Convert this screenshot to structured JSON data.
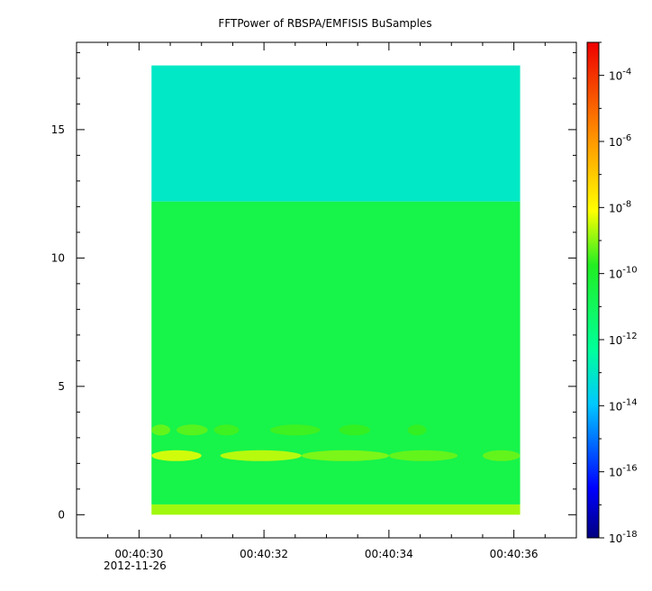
{
  "chart_data": {
    "type": "heatmap",
    "title": "FFTPower of RBSPA/EMFISIS  BuSamples",
    "xlabel": "",
    "ylabel": "",
    "x_ticks": [
      "00:40:30",
      "00:40:32",
      "00:40:34",
      "00:40:36"
    ],
    "x_tick_values_s": [
      30,
      32,
      34,
      36
    ],
    "x_date_label": "2012-11-26",
    "xlim_s": [
      29.0,
      37.0
    ],
    "data_x_range_s": [
      30.2,
      36.1
    ],
    "y_ticks": [
      "0",
      "5",
      "10",
      "15"
    ],
    "y_tick_values": [
      0,
      5,
      10,
      15
    ],
    "ylim": [
      -0.9,
      18.4
    ],
    "data_y_range": [
      0,
      17.5
    ],
    "colorbar": {
      "scale": "log",
      "range": [
        1e-18,
        0.001
      ],
      "tick_exponents": [
        -4,
        -6,
        -8,
        -10,
        -12,
        -14,
        -16,
        -18
      ],
      "tick_base": "10"
    },
    "bands": [
      {
        "y_range": [
          12.2,
          17.5
        ],
        "log10_power": -13.0
      },
      {
        "y_range": [
          0.4,
          12.2
        ],
        "log10_power": -10.6
      },
      {
        "y_range": [
          0.0,
          0.4
        ],
        "log10_power": -8.8
      }
    ],
    "features": [
      {
        "y_center": 2.3,
        "x_range_s": [
          30.2,
          31.0
        ],
        "log10_power": -8.3
      },
      {
        "y_center": 2.3,
        "x_range_s": [
          31.3,
          32.6
        ],
        "log10_power": -8.5
      },
      {
        "y_center": 2.3,
        "x_range_s": [
          32.6,
          34.0
        ],
        "log10_power": -9.0
      },
      {
        "y_center": 2.3,
        "x_range_s": [
          34.0,
          35.1
        ],
        "log10_power": -9.2
      },
      {
        "y_center": 2.3,
        "x_range_s": [
          35.5,
          36.1
        ],
        "log10_power": -9.2
      },
      {
        "y_center": 3.3,
        "x_range_s": [
          30.2,
          30.5
        ],
        "log10_power": -9.2
      },
      {
        "y_center": 3.3,
        "x_range_s": [
          30.6,
          31.1
        ],
        "log10_power": -9.3
      },
      {
        "y_center": 3.3,
        "x_range_s": [
          31.2,
          31.6
        ],
        "log10_power": -9.5
      },
      {
        "y_center": 3.3,
        "x_range_s": [
          32.1,
          32.9
        ],
        "log10_power": -9.5
      },
      {
        "y_center": 3.3,
        "x_range_s": [
          33.2,
          33.7
        ],
        "log10_power": -9.6
      },
      {
        "y_center": 3.3,
        "x_range_s": [
          34.3,
          34.6
        ],
        "log10_power": -9.6
      }
    ]
  }
}
